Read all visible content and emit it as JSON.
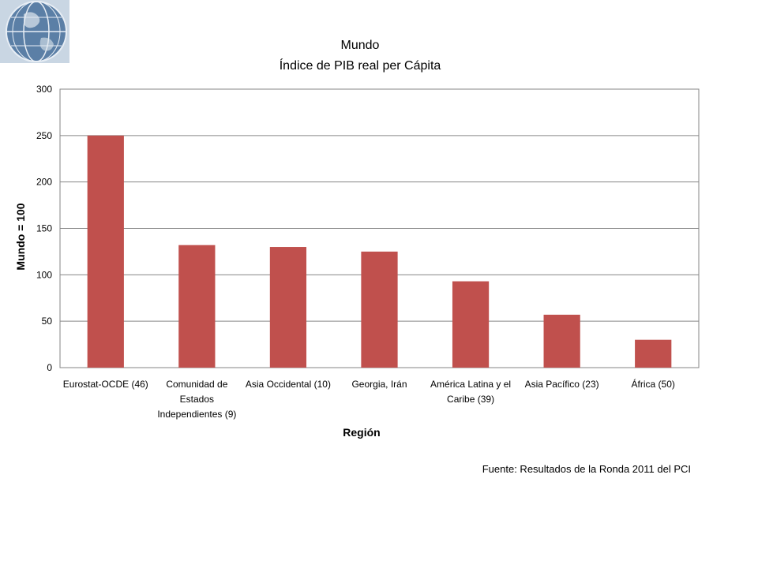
{
  "logo": {
    "icon": "globe-icon"
  },
  "chart_data": {
    "type": "bar",
    "title": "Mundo",
    "subtitle": "Índice de PIB real per Cápita",
    "xlabel": "Región",
    "ylabel": "Mundo = 100",
    "ylim": [
      0,
      300
    ],
    "yticks": [
      0,
      50,
      100,
      150,
      200,
      250,
      300
    ],
    "grid": true,
    "bar_color": "#c0504d",
    "categories": [
      "Eurostat-OCDE (46)",
      "Comunidad de Estados Independientes (9)",
      "Asia Occidental (10)",
      "Georgia, Irán",
      "América Latina y el Caribe (39)",
      "Asia Pacífico (23)",
      "África (50)"
    ],
    "values": [
      250,
      132,
      130,
      125,
      93,
      57,
      30
    ],
    "source": "Fuente: Resultados de la Ronda 2011 del PCI"
  }
}
